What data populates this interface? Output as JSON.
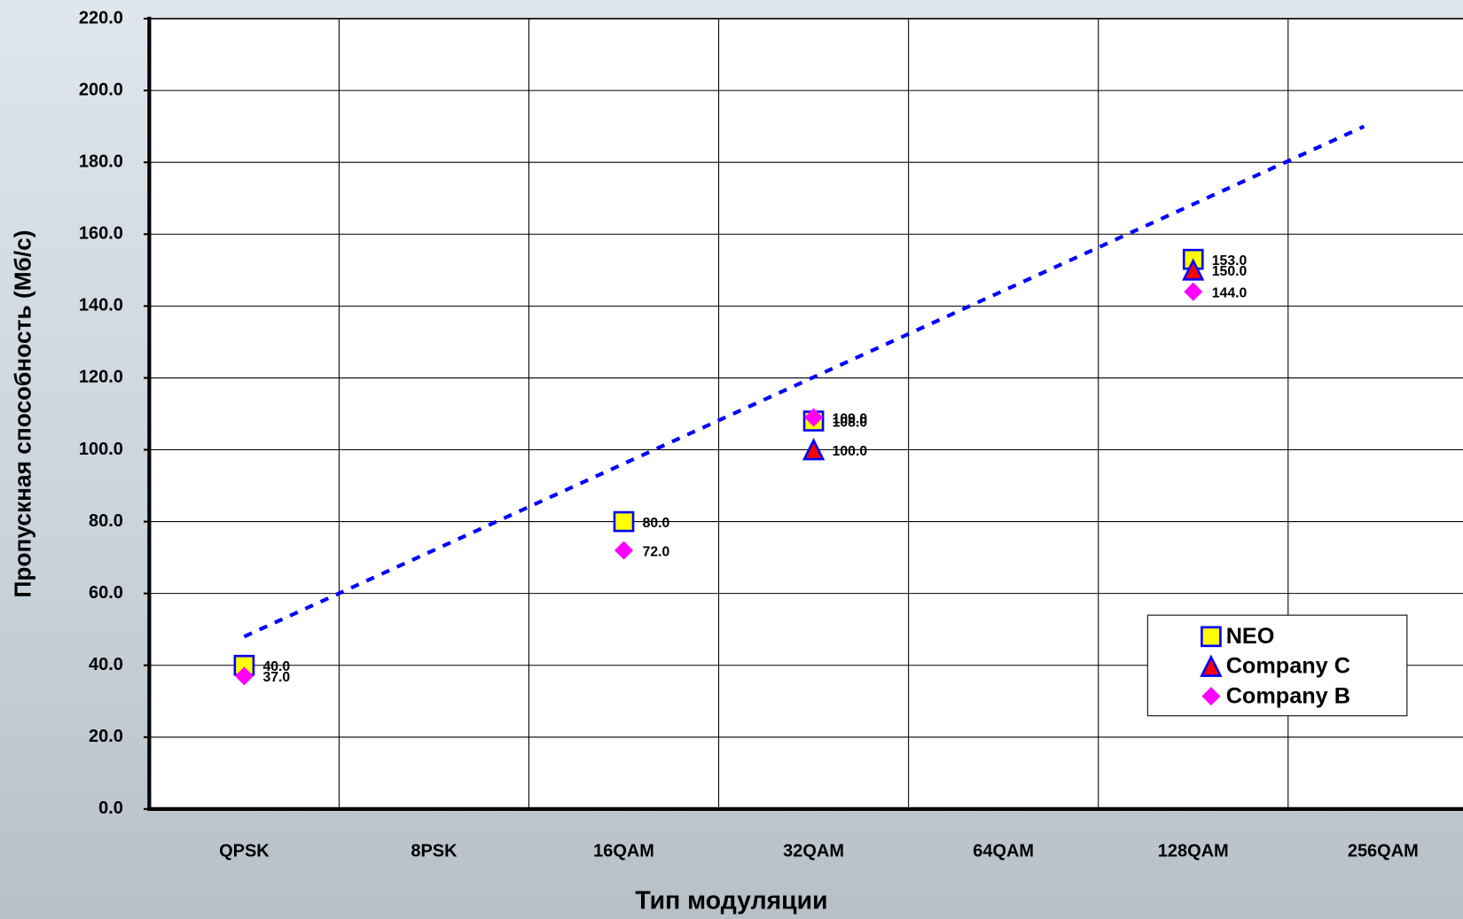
{
  "chart_data": {
    "type": "scatter",
    "x_label": "Тип модуляции",
    "y_label": "Пропускная способность (Мб/с)",
    "categories": [
      "QPSK",
      "8PSK",
      "16QAM",
      "32QAM",
      "64QAM",
      "128QAM",
      "256QAM"
    ],
    "series": [
      {
        "name": "NEO",
        "color": "#ffff00",
        "marker": "square",
        "values": [
          40,
          null,
          80,
          108,
          null,
          153,
          null
        ],
        "value_labels": [
          "40.0",
          null,
          "80.0",
          "108.0",
          null,
          "153.0",
          null
        ]
      },
      {
        "name": "Company C",
        "color": "#ff0000",
        "marker": "triangle",
        "values": [
          null,
          null,
          null,
          100,
          null,
          150,
          null
        ],
        "value_labels": [
          null,
          null,
          null,
          "100.0",
          null,
          "150.0",
          null
        ]
      },
      {
        "name": "Company B",
        "color": "#ff00ff",
        "marker": "diamond",
        "values": [
          37,
          null,
          72,
          109,
          null,
          144,
          null
        ],
        "value_labels": [
          "37.0",
          null,
          "72.0",
          "109.0",
          null,
          "144.0",
          null
        ]
      }
    ],
    "trendline": {
      "x": [
        0,
        5.9
      ],
      "values": [
        48,
        190
      ],
      "color": "#0000ff"
    },
    "ylim": [
      0,
      220
    ],
    "yticks": [
      {
        "value": 0,
        "label": "0.0"
      },
      {
        "value": 20,
        "label": "20.0"
      },
      {
        "value": 40,
        "label": "40.0"
      },
      {
        "value": 60,
        "label": "60.0"
      },
      {
        "value": 80,
        "label": "80.0"
      },
      {
        "value": 100,
        "label": "100.0"
      },
      {
        "value": 120,
        "label": "120.0"
      },
      {
        "value": 140,
        "label": "140.0"
      },
      {
        "value": 160,
        "label": "160.0"
      },
      {
        "value": 180,
        "label": "180.0"
      },
      {
        "value": 200,
        "label": "200.0"
      },
      {
        "value": 220,
        "label": "220.0"
      }
    ],
    "grid": true,
    "legend": "lower-right"
  }
}
